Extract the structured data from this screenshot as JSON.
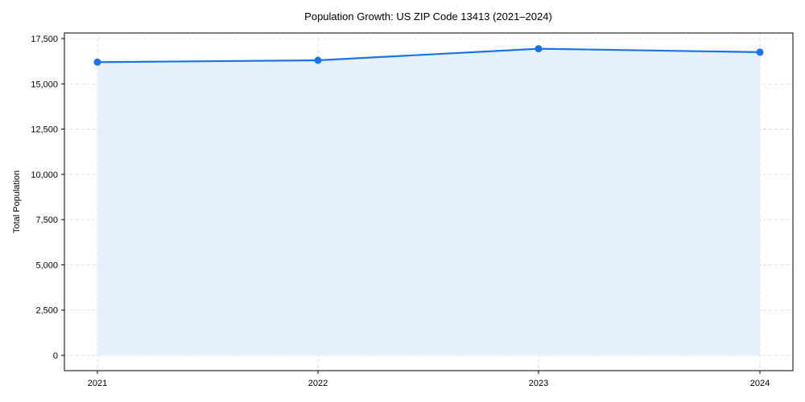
{
  "chart_data": {
    "type": "area",
    "title": "Population Growth: US ZIP Code 13413 (2021–2024)",
    "xlabel": "",
    "ylabel": "Total Population",
    "categories": [
      "2021",
      "2022",
      "2023",
      "2024"
    ],
    "series": [
      {
        "name": "Total Population",
        "values": [
          16200,
          16300,
          16940,
          16750
        ]
      }
    ],
    "ylim": [
      -850,
      18550
    ],
    "yticks": [
      0,
      2500,
      5000,
      7500,
      10000,
      12500,
      15000,
      17500
    ],
    "ytick_labels": [
      "0",
      "2,500",
      "5,000",
      "7,500",
      "10,000",
      "12,500",
      "15,000",
      "17,500"
    ],
    "grid": true,
    "legend": null,
    "colors": {
      "line": "#1a73e8",
      "fill": "#e3effd",
      "grid": "#d9d9d9"
    }
  }
}
